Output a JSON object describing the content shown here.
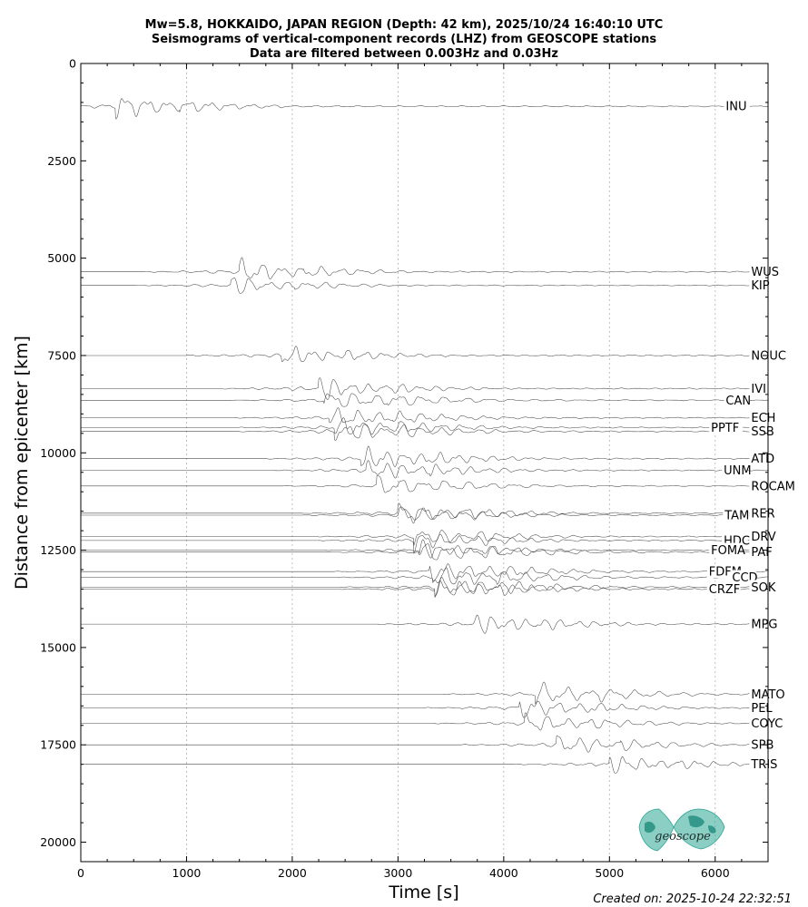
{
  "chart_data": {
    "type": "line",
    "title_lines": [
      "Mw=5.8, HOKKAIDO, JAPAN REGION (Depth: 42 km), 2025/10/24 16:40:10 UTC",
      "Seismograms of vertical-component records (LHZ) from GEOSCOPE stations",
      "Data are filtered between 0.003Hz and 0.03Hz"
    ],
    "xlabel": "Time [s]",
    "ylabel": "Distance from epicenter [km]",
    "xlim": [
      0,
      6500
    ],
    "ylim": [
      20500,
      0
    ],
    "y_inverted": true,
    "x_ticks": [
      0,
      1000,
      2000,
      3000,
      4000,
      5000,
      6000
    ],
    "y_ticks": [
      0,
      2500,
      5000,
      7500,
      10000,
      12500,
      15000,
      17500,
      20000
    ],
    "grid": "vertical dotted lines at major x ticks",
    "stations": [
      {
        "name": "INU",
        "distance": 1100,
        "arrival": 330,
        "amp": 380,
        "label_x": 6100
      },
      {
        "name": "WUS",
        "distance": 5350,
        "arrival": 1500,
        "amp": 380,
        "label_x": 6340
      },
      {
        "name": "KIP",
        "distance": 5700,
        "arrival": 1420,
        "amp": 300,
        "label_x": 6340
      },
      {
        "name": "NOUC",
        "distance": 7500,
        "arrival": 1900,
        "amp": 350,
        "label_x": 6340
      },
      {
        "name": "IVI",
        "distance": 8350,
        "arrival": 2250,
        "amp": 400,
        "label_x": 6340
      },
      {
        "name": "CAN",
        "distance": 8650,
        "arrival": 2300,
        "amp": 300,
        "label_x": 6100
      },
      {
        "name": "ECH",
        "distance": 9100,
        "arrival": 2350,
        "amp": 300,
        "label_x": 6340
      },
      {
        "name": "PPTF",
        "distance": 9350,
        "arrival": 2400,
        "amp": 300,
        "label_x": 5960
      },
      {
        "name": "SSB",
        "distance": 9450,
        "arrival": 2400,
        "amp": 330,
        "label_x": 6340
      },
      {
        "name": "ATD",
        "distance": 10150,
        "arrival": 2650,
        "amp": 350,
        "label_x": 6340
      },
      {
        "name": "UNM",
        "distance": 10450,
        "arrival": 2700,
        "amp": 320,
        "label_x": 6080
      },
      {
        "name": "ROCAM",
        "distance": 10850,
        "arrival": 2800,
        "amp": 320,
        "label_x": 6340
      },
      {
        "name": "RER",
        "distance": 11550,
        "arrival": 3000,
        "amp": 340,
        "label_x": 6340
      },
      {
        "name": "TAM",
        "distance": 11600,
        "arrival": 3000,
        "amp": 300,
        "label_x": 6090
      },
      {
        "name": "DRV",
        "distance": 12150,
        "arrival": 3150,
        "amp": 320,
        "label_x": 6340
      },
      {
        "name": "HDC",
        "distance": 12250,
        "arrival": 3150,
        "amp": 320,
        "label_x": 6080
      },
      {
        "name": "FOMA",
        "distance": 12500,
        "arrival": 3200,
        "amp": 300,
        "label_x": 5960
      },
      {
        "name": "PAF",
        "distance": 12550,
        "arrival": 3200,
        "amp": 300,
        "label_x": 6340
      },
      {
        "name": "FDFM",
        "distance": 13050,
        "arrival": 3300,
        "amp": 300,
        "label_x": 5940
      },
      {
        "name": "CCD",
        "distance": 13200,
        "arrival": 3330,
        "amp": 320,
        "label_x": 6160
      },
      {
        "name": "SOK",
        "distance": 13450,
        "arrival": 3350,
        "amp": 320,
        "label_x": 6340
      },
      {
        "name": "CRZF",
        "distance": 13500,
        "arrival": 3350,
        "amp": 300,
        "label_x": 5940
      },
      {
        "name": "MPG",
        "distance": 14400,
        "arrival": 3700,
        "amp": 320,
        "label_x": 6340
      },
      {
        "name": "MATO",
        "distance": 16200,
        "arrival": 4300,
        "amp": 350,
        "label_x": 6340
      },
      {
        "name": "PEL",
        "distance": 16550,
        "arrival": 4150,
        "amp": 320,
        "label_x": 6340
      },
      {
        "name": "COYC",
        "distance": 16950,
        "arrival": 4200,
        "amp": 320,
        "label_x": 6340
      },
      {
        "name": "SPB",
        "distance": 17500,
        "arrival": 4500,
        "amp": 350,
        "label_x": 6340
      },
      {
        "name": "TRIS",
        "distance": 18000,
        "arrival": 5000,
        "amp": 320,
        "label_x": 6340
      }
    ]
  },
  "created_on": "Created on: 2025-10-24 22:32:51",
  "logo": {
    "text": "geoscope",
    "color": "#2aa593"
  }
}
